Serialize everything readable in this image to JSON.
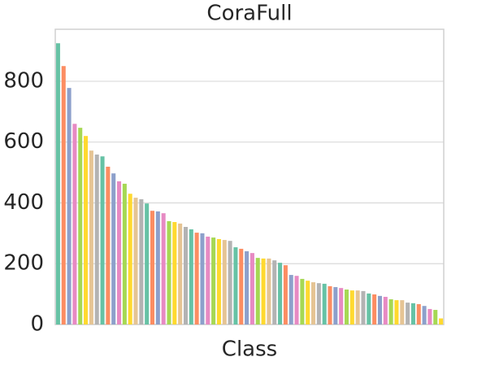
{
  "chart_data": {
    "type": "bar",
    "title": "CoraFull",
    "x_label": "Class",
    "categories": [
      null,
      null,
      null,
      null,
      null,
      null,
      null,
      null,
      null,
      null,
      null,
      null,
      null,
      null,
      null,
      null,
      null,
      null,
      null,
      null,
      null,
      null,
      null,
      null,
      null,
      null,
      null,
      null,
      null,
      null,
      null,
      null,
      null,
      null,
      null,
      null,
      null,
      null,
      null,
      null,
      null,
      null,
      null,
      null,
      null,
      null,
      null,
      null,
      null,
      null,
      null,
      null,
      null,
      null,
      null,
      null,
      null,
      null,
      null,
      null,
      null,
      null,
      null,
      null,
      null,
      null,
      null,
      null,
      null,
      null
    ],
    "values": [
      925,
      850,
      778,
      660,
      647,
      620,
      572,
      559,
      553,
      519,
      497,
      471,
      463,
      430,
      417,
      412,
      398,
      374,
      372,
      366,
      340,
      337,
      332,
      321,
      313,
      302,
      300,
      289,
      286,
      281,
      278,
      275,
      254,
      249,
      241,
      235,
      219,
      217,
      217,
      211,
      203,
      195,
      163,
      160,
      150,
      144,
      139,
      136,
      134,
      126,
      123,
      120,
      115,
      112,
      112,
      110,
      102,
      99,
      94,
      91,
      83,
      80,
      80,
      72,
      70,
      67,
      61,
      51,
      48,
      20
    ],
    "colors": [
      "#66c2a5",
      "#fc8d62",
      "#8da0cb",
      "#e78ac3",
      "#a6d854",
      "#ffd92f",
      "#e5c494",
      "#b3b3b3"
    ],
    "ylim": [
      0,
      971
    ],
    "yticks": [
      0,
      200,
      400,
      600,
      800
    ],
    "grid": true
  }
}
